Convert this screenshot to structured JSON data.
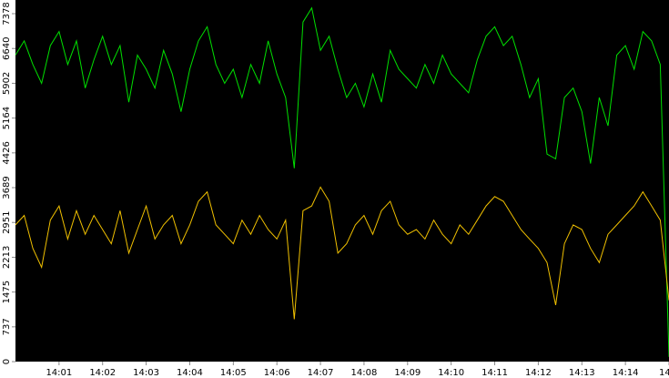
{
  "chart_data": {
    "type": "line",
    "x": [
      0,
      0.2,
      0.4,
      0.6,
      0.8,
      1.0,
      1.2,
      1.4,
      1.6,
      1.8,
      2.0,
      2.2,
      2.4,
      2.6,
      2.8,
      3.0,
      3.2,
      3.4,
      3.6,
      3.8,
      4.0,
      4.2,
      4.4,
      4.6,
      4.8,
      5.0,
      5.2,
      5.4,
      5.6,
      5.8,
      6.0,
      6.2,
      6.4,
      6.6,
      6.8,
      7.0,
      7.2,
      7.4,
      7.6,
      7.8,
      8.0,
      8.2,
      8.4,
      8.6,
      8.8,
      9.0,
      9.2,
      9.4,
      9.6,
      9.8,
      10.0,
      10.2,
      10.4,
      10.6,
      10.8,
      11.0,
      11.2,
      11.4,
      11.6,
      11.8,
      12.0,
      12.2,
      12.4,
      12.6,
      12.8,
      13.0,
      13.2,
      13.4,
      13.6,
      13.8,
      14.0,
      14.2,
      14.4,
      14.6,
      14.8,
      15.0
    ],
    "series": [
      {
        "color": "#00e000",
        "values": [
          6500,
          6800,
          6300,
          5900,
          6700,
          7000,
          6300,
          6800,
          5800,
          6400,
          6900,
          6300,
          6700,
          5500,
          6500,
          6200,
          5800,
          6600,
          6100,
          5300,
          6200,
          6800,
          7100,
          6300,
          5900,
          6200,
          5600,
          6300,
          5900,
          6800,
          6100,
          5600,
          4100,
          7200,
          7500,
          6600,
          6900,
          6200,
          5600,
          5900,
          5400,
          6100,
          5500,
          6600,
          6200,
          6000,
          5800,
          6300,
          5900,
          6500,
          6100,
          5900,
          5700,
          6400,
          6900,
          7100,
          6700,
          6900,
          6300,
          5600,
          6000,
          4400,
          4300,
          5600,
          5800,
          5300,
          4200,
          5600,
          5000,
          6500,
          6700,
          6200,
          7000,
          6800,
          6300,
          100
        ]
      },
      {
        "color": "#f0c000",
        "values": [
          2900,
          3100,
          2400,
          2000,
          3000,
          3300,
          2600,
          3200,
          2700,
          3100,
          2800,
          2500,
          3200,
          2300,
          2800,
          3300,
          2600,
          2900,
          3100,
          2500,
          2900,
          3400,
          3600,
          2900,
          2700,
          2500,
          3000,
          2700,
          3100,
          2800,
          2600,
          3000,
          900,
          3200,
          3300,
          3700,
          3400,
          2300,
          2500,
          2900,
          3100,
          2700,
          3200,
          3400,
          2900,
          2700,
          2800,
          2600,
          3000,
          2700,
          2500,
          2900,
          2700,
          3000,
          3300,
          3500,
          3400,
          3100,
          2800,
          2600,
          2400,
          2100,
          1200,
          2500,
          2900,
          2800,
          2400,
          2100,
          2700,
          2900,
          3100,
          3300,
          3600,
          3300,
          3000,
          1300
        ]
      }
    ],
    "xlim": [
      0,
      15
    ],
    "xticks": [
      {
        "value": 1,
        "label": "14:01"
      },
      {
        "value": 2,
        "label": "14:02"
      },
      {
        "value": 3,
        "label": "14:03"
      },
      {
        "value": 4,
        "label": "14:04"
      },
      {
        "value": 5,
        "label": "14:05"
      },
      {
        "value": 6,
        "label": "14:06"
      },
      {
        "value": 7,
        "label": "14:07"
      },
      {
        "value": 8,
        "label": "14:08"
      },
      {
        "value": 9,
        "label": "14:09"
      },
      {
        "value": 10,
        "label": "14:10"
      },
      {
        "value": 11,
        "label": "14:11"
      },
      {
        "value": 12,
        "label": "14:12"
      },
      {
        "value": 13,
        "label": "14:13"
      },
      {
        "value": 14,
        "label": "14:14"
      },
      {
        "value": 15,
        "label": "14"
      }
    ],
    "ylim": [
      0,
      7668
    ],
    "yticks": [
      0,
      737,
      1475,
      2213,
      2951,
      3689,
      4426,
      5164,
      5902,
      6640,
      7378
    ],
    "background": "#000000"
  }
}
